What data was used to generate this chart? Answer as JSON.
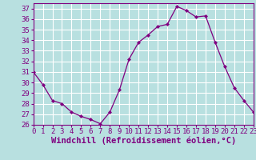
{
  "x": [
    0,
    1,
    2,
    3,
    4,
    5,
    6,
    7,
    8,
    9,
    10,
    11,
    12,
    13,
    14,
    15,
    16,
    17,
    18,
    19,
    20,
    21,
    22,
    23
  ],
  "y": [
    31,
    29.8,
    28.3,
    28.0,
    27.2,
    26.8,
    26.5,
    26.1,
    27.2,
    29.3,
    32.2,
    33.8,
    34.5,
    35.3,
    35.5,
    37.2,
    36.8,
    36.2,
    36.3,
    33.8,
    31.5,
    29.5,
    28.3,
    27.2
  ],
  "xlim": [
    0,
    23
  ],
  "ylim": [
    26,
    37.5
  ],
  "yticks": [
    26,
    27,
    28,
    29,
    30,
    31,
    32,
    33,
    34,
    35,
    36,
    37
  ],
  "xticks": [
    0,
    1,
    2,
    3,
    4,
    5,
    6,
    7,
    8,
    9,
    10,
    11,
    12,
    13,
    14,
    15,
    16,
    17,
    18,
    19,
    20,
    21,
    22,
    23
  ],
  "xlabel": "Windchill (Refroidissement éolien,°C)",
  "line_color": "#800080",
  "marker": "D",
  "marker_size": 2.0,
  "bg_color": "#b8e0e0",
  "grid_color": "#ffffff",
  "tick_label_fontsize": 6.5,
  "xlabel_fontsize": 7.5,
  "spine_color": "#800080"
}
